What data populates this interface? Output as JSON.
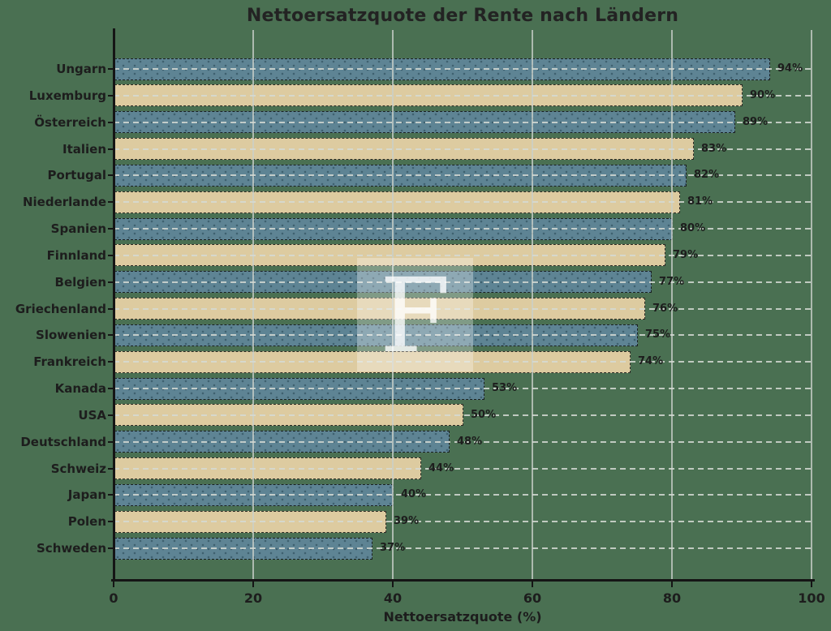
{
  "title": "Nettoersatzquote der Rente nach Ländern",
  "x_axis_label": "Nettoersatzquote (%)",
  "watermark_letter": "F",
  "colors": {
    "background": "#4a7052",
    "bar_blue": "#5e8494",
    "bar_tan": "#ddcba0",
    "grid": "#c9cfc9",
    "axis": "#151515",
    "text": "#1d1d1d"
  },
  "chart_data": {
    "type": "bar",
    "orientation": "horizontal",
    "title": "Nettoersatzquote der Rente nach Ländern",
    "xlabel": "Nettoersatzquote (%)",
    "xlim": [
      0,
      100
    ],
    "x_ticks": [
      0,
      20,
      40,
      60,
      80,
      100
    ],
    "grid": true,
    "legend": null,
    "categories": [
      "Ungarn",
      "Luxemburg",
      "Österreich",
      "Italien",
      "Portugal",
      "Niederlande",
      "Spanien",
      "Finnland",
      "Belgien",
      "Griechenland",
      "Slowenien",
      "Frankreich",
      "Kanada",
      "USA",
      "Deutschland",
      "Schweiz",
      "Japan",
      "Polen",
      "Schweden"
    ],
    "values": [
      94,
      90,
      89,
      83,
      82,
      81,
      80,
      79,
      77,
      76,
      75,
      74,
      53,
      50,
      48,
      44,
      40,
      39,
      37
    ],
    "value_labels": [
      "94%",
      "90%",
      "89%",
      "83%",
      "82%",
      "81%",
      "80%",
      "79%",
      "77%",
      "76%",
      "75%",
      "74%",
      "53%",
      "50%",
      "48%",
      "44%",
      "40%",
      "39%",
      "37%"
    ],
    "bar_color_pattern": [
      "#5e8494",
      "#ddcba0"
    ]
  }
}
